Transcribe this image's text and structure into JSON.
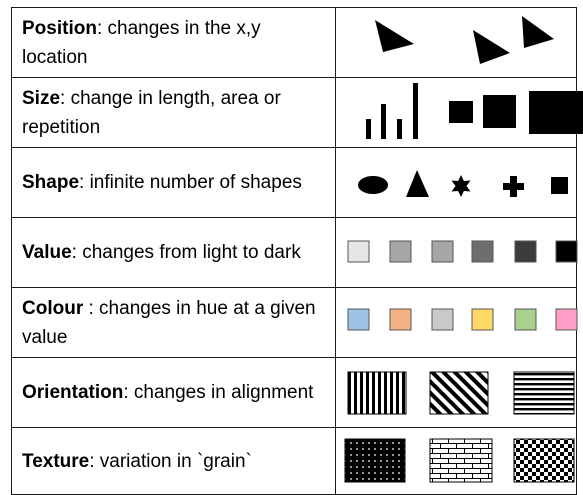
{
  "rows": [
    {
      "term": "Position",
      "desc": ": changes in the x,y location"
    },
    {
      "term": "Size",
      "desc": ": change in length, area or repetition"
    },
    {
      "term": "Shape",
      "desc": ": infinite number of shapes"
    },
    {
      "term": "Value",
      "desc": ": changes from light to dark"
    },
    {
      "term": "Colour",
      "desc": " : changes in hue at a given value"
    },
    {
      "term": "Orientation",
      "desc": ": changes in alignment"
    },
    {
      "term": "Texture",
      "desc": ": variation in `grain`"
    }
  ],
  "value_swatches": [
    "#e6e6e6",
    "#a6a6a6",
    "#a6a6a6",
    "#6e6e6e",
    "#3c3c3c",
    "#000000"
  ],
  "colour_swatches": [
    "#9dc3e6",
    "#f4b183",
    "#c9c9c9",
    "#ffd966",
    "#a9d18e",
    "#ff9fc8"
  ]
}
